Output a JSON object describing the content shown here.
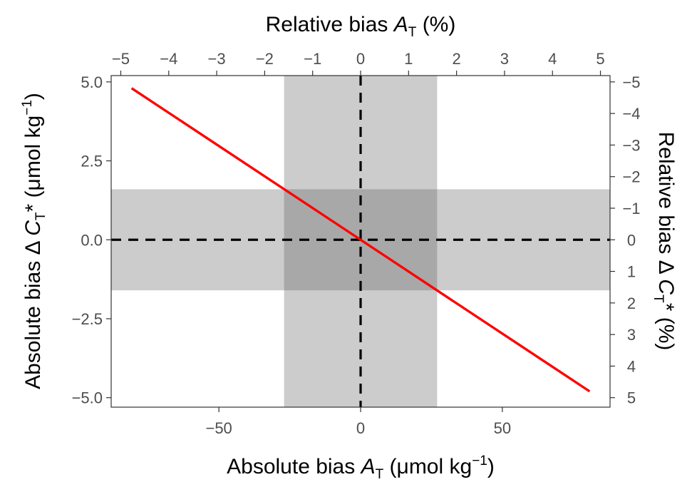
{
  "chart_data": {
    "type": "line",
    "xlabel": {
      "prefix": "Absolute bias ",
      "var": "A",
      "sub": "T",
      "unit_pre": " (μmol kg",
      "sup": "−1",
      "unit_post": ")"
    },
    "x2label": {
      "prefix": "Relative bias ",
      "var": "A",
      "sub": "T",
      "suffix": " (%)"
    },
    "ylabel": {
      "prefix": "Absolute bias Δ ",
      "var": "C",
      "sub": "T",
      "star": "*",
      "unit_pre": " (μmol kg",
      "sup": "−1",
      "unit_post": ")"
    },
    "y2label": {
      "prefix": "Relative bias Δ ",
      "var": "C",
      "sub": "T",
      "star": "*",
      "suffix": " (%)"
    },
    "xlim": [
      -88,
      88
    ],
    "ylim": [
      -5.3,
      5.2
    ],
    "x_ticks": [
      -50,
      0,
      50
    ],
    "x_tick_labels": [
      "−50",
      "0",
      "50"
    ],
    "y_ticks": [
      5.0,
      2.5,
      0.0,
      -2.5,
      -5.0
    ],
    "y_tick_labels": [
      "5.0",
      "2.5",
      "0.0",
      "−2.5",
      "−5.0"
    ],
    "x2_ticks": [
      -5,
      -4,
      -3,
      -2,
      -1,
      0,
      1,
      2,
      3,
      4,
      5
    ],
    "x2_tick_labels": [
      "−5",
      "−4",
      "−3",
      "−2",
      "−1",
      "0",
      "1",
      "2",
      "3",
      "4",
      "5"
    ],
    "y2_ticks": [
      -5,
      -4,
      -3,
      -2,
      -1,
      0,
      1,
      2,
      3,
      4,
      5
    ],
    "y2_tick_labels": [
      "−5",
      "−4",
      "−3",
      "−2",
      "−1",
      "0",
      "1",
      "2",
      "3",
      "4",
      "5"
    ],
    "series": [
      {
        "x": [
          -80.8,
          80.8
        ],
        "y": [
          4.8,
          -4.8
        ],
        "color": "#ff0000"
      }
    ],
    "shaded_bands": {
      "x_band": [
        -27,
        27
      ],
      "y_band": [
        -1.6,
        1.6
      ],
      "color": "#cccccc",
      "overlap_color": "#a8a8a8"
    },
    "reference_lines": {
      "x": 0,
      "y": 0,
      "style": "dashed",
      "color": "#000000"
    },
    "grid": false
  }
}
